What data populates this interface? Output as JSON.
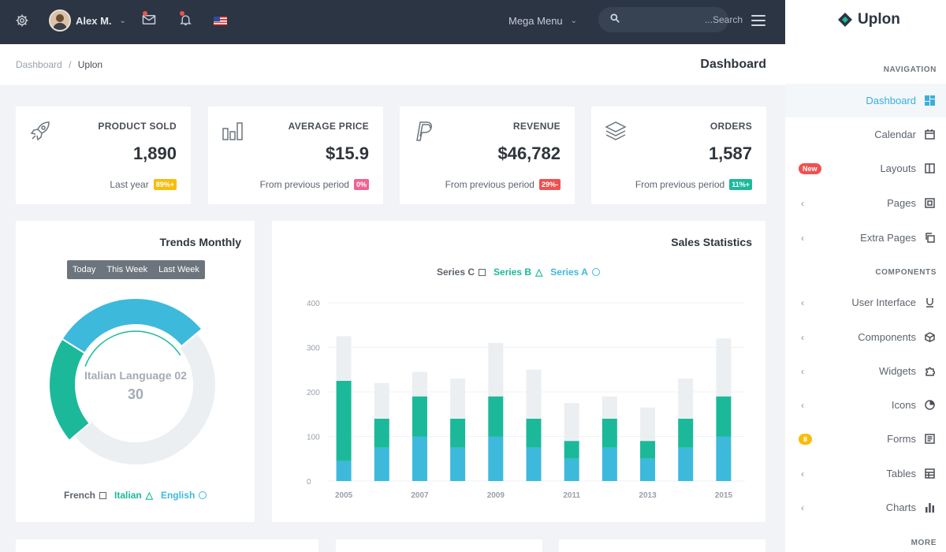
{
  "topbar": {
    "user_name": "Alex M.",
    "mega_menu": "Mega Menu",
    "search_placeholder": "...Search"
  },
  "breadcrumb": {
    "root": "Dashboard",
    "sep": "/",
    "current": "Uplon"
  },
  "page_title": "Dashboard",
  "stats": [
    {
      "label": "PRODUCT SOLD",
      "value": "1,890",
      "foot": "Last year",
      "badge": "89%+",
      "badge_color": "#f9bc0b"
    },
    {
      "label": "AVERAGE PRICE",
      "value": "$15.9",
      "foot": "From previous period",
      "badge": "0%",
      "badge_color": "#f06292"
    },
    {
      "label": "REVENUE",
      "value": "$46,782",
      "foot": "From previous period",
      "badge": "29%-",
      "badge_color": "#f05050"
    },
    {
      "label": "ORDERS",
      "value": "1,587",
      "foot": "From previous period",
      "badge": "11%+",
      "badge_color": "#1bb99a"
    }
  ],
  "trends": {
    "title": "Trends Monthly",
    "tabs": [
      "Today",
      "This Week",
      "Last Week"
    ],
    "center_label": "Italian Language 02",
    "center_value": "30",
    "legend": [
      "French",
      "Italian",
      "English"
    ]
  },
  "sales": {
    "title": "Sales Statistics",
    "legend": [
      "Series C",
      "Series B",
      "Series A"
    ]
  },
  "chart_data": [
    {
      "type": "pie",
      "categories": [
        "English",
        "Italian",
        "French"
      ],
      "values": [
        20,
        30,
        50
      ],
      "colors": [
        "#1bb99a",
        "#3db9dc",
        "#ebeff2"
      ]
    },
    {
      "type": "bar",
      "categories": [
        "2005",
        "2006",
        "2007",
        "2008",
        "2009",
        "2010",
        "2011",
        "2012",
        "2013",
        "2014",
        "2015"
      ],
      "ylim": [
        0,
        400
      ],
      "yticks": [
        0,
        100,
        200,
        300,
        400
      ],
      "xtick_labels": [
        "2005",
        "2007",
        "2009",
        "2011",
        "2013",
        "2015"
      ],
      "series": [
        {
          "name": "Series A",
          "values": [
            45,
            75,
            100,
            75,
            100,
            75,
            50,
            75,
            50,
            75,
            100
          ],
          "color": "#3db9dc"
        },
        {
          "name": "Series B",
          "values": [
            180,
            65,
            90,
            65,
            90,
            65,
            40,
            65,
            40,
            65,
            90
          ],
          "color": "#1bb99a"
        },
        {
          "name": "Series C",
          "values": [
            100,
            80,
            55,
            90,
            120,
            110,
            85,
            50,
            75,
            90,
            130
          ],
          "color": "#ebeff2"
        }
      ]
    }
  ],
  "sidebar": {
    "brand": "Uplon",
    "nav_head": "NAVIGATION",
    "components_head": "COMPONENTS",
    "more_head": "MORE",
    "items": [
      {
        "label": "Dashboard"
      },
      {
        "label": "Calendar"
      },
      {
        "label": "Layouts",
        "badge": "New"
      },
      {
        "label": "Pages"
      },
      {
        "label": "Extra Pages"
      },
      {
        "label": "User Interface"
      },
      {
        "label": "Components"
      },
      {
        "label": "Widgets"
      },
      {
        "label": "Icons"
      },
      {
        "label": "Forms",
        "badge": "8"
      },
      {
        "label": "Tables"
      },
      {
        "label": "Charts"
      }
    ]
  }
}
